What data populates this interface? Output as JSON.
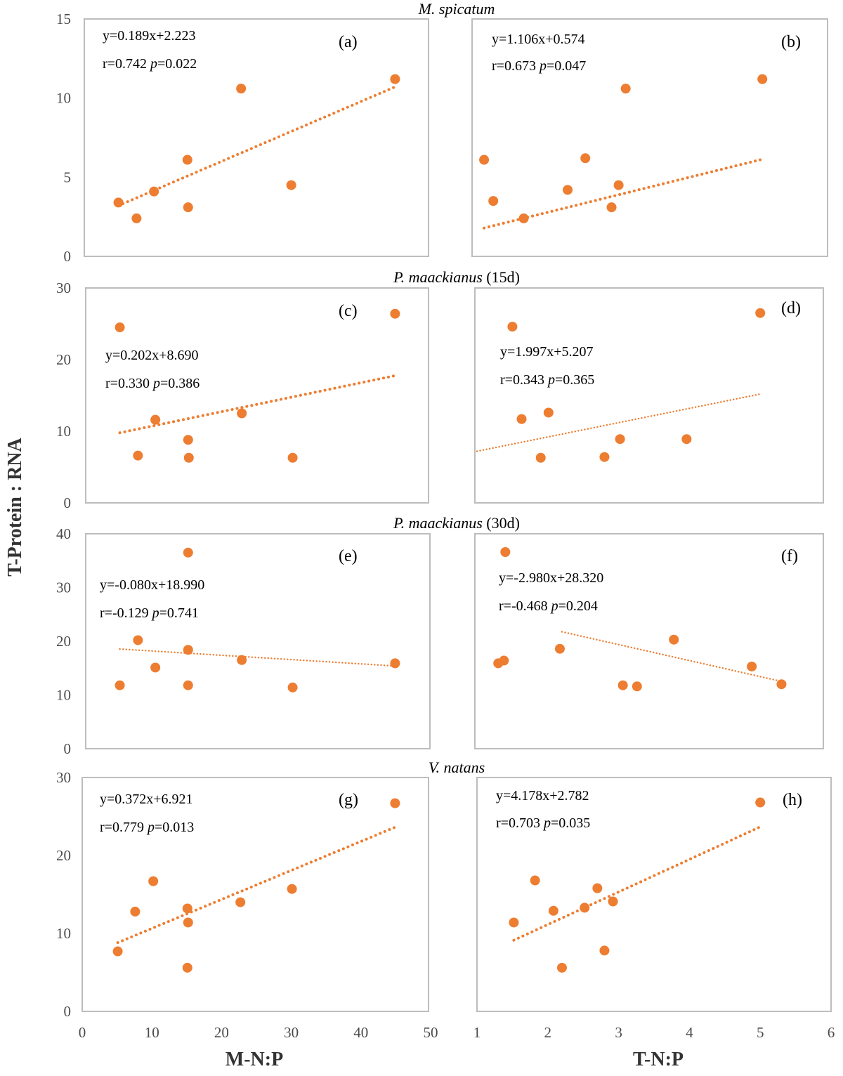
{
  "figure": {
    "ylabel": "T-Protein : RNA",
    "xlabel_left": "M-N:P",
    "xlabel_right": "T-N:P",
    "point_color": "#ed7d31",
    "trend_color": "#ed7d31"
  },
  "chart_data": [
    {
      "type": "scatter",
      "id": "a",
      "label": "(a)",
      "row_title": "M. spicatum",
      "xlabel": "M-N:P",
      "ylabel": "T-Protein : RNA",
      "xlim": [
        0,
        50
      ],
      "ylim": [
        0,
        15
      ],
      "xticks": [
        0,
        10,
        20,
        30,
        40,
        50
      ],
      "yticks": [
        0,
        5,
        10,
        15
      ],
      "x": [
        5.2,
        7.8,
        10.3,
        15.1,
        15.2,
        22.8,
        30.0,
        44.9
      ],
      "y": [
        3.4,
        2.4,
        4.1,
        6.1,
        3.1,
        10.6,
        4.5,
        11.2
      ],
      "trendline": {
        "slope": 0.189,
        "intercept": 2.223,
        "x_range": [
          5.2,
          44.9
        ],
        "style": "dotted-bold"
      },
      "equation": "y=0.189x+2.223",
      "r": "0.742",
      "p": "0.022"
    },
    {
      "type": "scatter",
      "id": "b",
      "label": "(b)",
      "row_title": "M. spicatum",
      "xlabel": "T-N:P",
      "ylabel": "T-Protein : RNA",
      "xlim": [
        1,
        6
      ],
      "ylim": [
        0,
        15
      ],
      "xticks": [
        1,
        2,
        3,
        4,
        5,
        6
      ],
      "yticks": [
        0,
        5,
        10,
        15
      ],
      "x": [
        1.1,
        1.23,
        1.66,
        2.28,
        2.53,
        2.9,
        3.0,
        3.1,
        5.03
      ],
      "y": [
        6.1,
        3.5,
        2.4,
        4.2,
        6.2,
        3.1,
        4.5,
        10.6,
        11.2
      ],
      "trendline": {
        "slope": 1.106,
        "intercept": 0.574,
        "x_range": [
          1.1,
          5.03
        ],
        "style": "dotted-bold"
      },
      "equation": "y=1.106x+0.574",
      "r": "0.673",
      "p": "0.047"
    },
    {
      "type": "scatter",
      "id": "c",
      "label": "(c)",
      "row_title": "P. maackianus (15d)",
      "xlabel": "M-N:P",
      "ylabel": "T-Protein : RNA",
      "xlim": [
        0,
        50
      ],
      "ylim": [
        0,
        30
      ],
      "xticks": [
        0,
        10,
        20,
        30,
        40,
        50
      ],
      "yticks": [
        0,
        10,
        20,
        30
      ],
      "x": [
        5.4,
        8.0,
        10.5,
        15.2,
        15.3,
        22.9,
        30.2,
        44.9
      ],
      "y": [
        24.5,
        6.6,
        11.6,
        8.8,
        6.3,
        12.5,
        6.3,
        26.4
      ],
      "trendline": {
        "slope": 0.202,
        "intercept": 8.69,
        "x_range": [
          5.4,
          44.9
        ],
        "style": "dotted-bold"
      },
      "equation": "y=0.202x+8.690",
      "r": "0.330",
      "p": "0.386"
    },
    {
      "type": "scatter",
      "id": "d",
      "label": "(d)",
      "row_title": "P. maackianus (15d)",
      "xlabel": "T-N:P",
      "ylabel": "T-Protein : RNA",
      "xlim": [
        1,
        6
      ],
      "ylim": [
        0,
        30
      ],
      "xticks": [
        1,
        2,
        3,
        4,
        5,
        6
      ],
      "yticks": [
        0,
        10,
        20,
        30
      ],
      "x": [
        1.5,
        1.63,
        1.9,
        2.01,
        2.8,
        3.02,
        3.96,
        5.0
      ],
      "y": [
        24.6,
        11.7,
        6.3,
        12.6,
        6.4,
        8.9,
        8.9,
        26.5
      ],
      "trendline": {
        "slope": 1.997,
        "intercept": 5.207,
        "x_range": [
          1.0,
          5.0
        ],
        "style": "dotted-fine"
      },
      "equation": "y=1.997x+5.207",
      "r": "0.343",
      "p": "0.365"
    },
    {
      "type": "scatter",
      "id": "e",
      "label": "(e)",
      "row_title": "P. maackianus (30d)",
      "xlabel": "M-N:P",
      "ylabel": "T-Protein : RNA",
      "xlim": [
        0,
        50
      ],
      "ylim": [
        0,
        40
      ],
      "xticks": [
        0,
        10,
        20,
        30,
        40,
        50
      ],
      "yticks": [
        0,
        10,
        20,
        30,
        40
      ],
      "x": [
        5.4,
        8.0,
        10.5,
        15.2,
        15.2,
        15.2,
        22.9,
        30.2,
        44.9
      ],
      "y": [
        11.8,
        20.2,
        15.1,
        36.5,
        18.4,
        11.8,
        16.5,
        11.4,
        15.9
      ],
      "trendline": {
        "slope": -0.08,
        "intercept": 18.99,
        "x_range": [
          5.4,
          44.9
        ],
        "style": "dotted-fine"
      },
      "equation": "y=-0.080x+18.990",
      "r": "-0.129",
      "p": "0.741"
    },
    {
      "type": "scatter",
      "id": "f",
      "label": "(f)",
      "row_title": "P. maackianus (30d)",
      "xlabel": "T-N:P",
      "ylabel": "T-Protein : RNA",
      "xlim": [
        1,
        6
      ],
      "ylim": [
        0,
        40
      ],
      "xticks": [
        1,
        2,
        3,
        4,
        5,
        6
      ],
      "yticks": [
        0,
        10,
        20,
        30,
        40
      ],
      "x": [
        1.3,
        1.4,
        1.38,
        2.17,
        3.06,
        3.26,
        3.78,
        4.88,
        5.3
      ],
      "y": [
        15.9,
        36.6,
        16.4,
        18.6,
        11.8,
        11.6,
        20.3,
        15.3,
        12.0
      ],
      "trendline": {
        "slope": -2.98,
        "intercept": 28.32,
        "x_range": [
          2.2,
          5.3
        ],
        "style": "dotted-fine"
      },
      "equation": "y=-2.980x+28.320",
      "r": "-0.468",
      "p": "0.204"
    },
    {
      "type": "scatter",
      "id": "g",
      "label": "(g)",
      "row_title": "V. natans",
      "xlabel": "M-N:P",
      "ylabel": "T-Protein : RNA",
      "xlim": [
        0,
        50
      ],
      "ylim": [
        0,
        30
      ],
      "xticks": [
        0,
        10,
        20,
        30,
        40,
        50
      ],
      "yticks": [
        0,
        10,
        20,
        30
      ],
      "x": [
        5.1,
        7.6,
        10.2,
        15.1,
        15.2,
        15.1,
        22.7,
        30.1,
        44.9
      ],
      "y": [
        7.7,
        12.8,
        16.7,
        13.2,
        11.4,
        5.6,
        14.0,
        15.7,
        26.7
      ],
      "trendline": {
        "slope": 0.372,
        "intercept": 6.921,
        "x_range": [
          5.1,
          44.9
        ],
        "style": "dotted-bold"
      },
      "equation": "y=0.372x+6.921",
      "r": "0.779",
      "p": "0.013"
    },
    {
      "type": "scatter",
      "id": "h",
      "label": "(h)",
      "row_title": "V. natans",
      "xlabel": "T-N:P",
      "ylabel": "T-Protein : RNA",
      "xlim": [
        1,
        6
      ],
      "ylim": [
        0,
        30
      ],
      "xticks": [
        1,
        2,
        3,
        4,
        5,
        6
      ],
      "yticks": [
        0,
        10,
        20,
        30
      ],
      "x": [
        1.52,
        1.82,
        2.08,
        2.2,
        2.52,
        2.7,
        2.8,
        2.92,
        5.0
      ],
      "y": [
        11.4,
        16.8,
        12.9,
        5.6,
        13.3,
        15.8,
        7.8,
        14.1,
        26.8
      ],
      "trendline": {
        "slope": 4.178,
        "intercept": 2.782,
        "x_range": [
          1.52,
          5.0
        ],
        "style": "dotted-bold"
      },
      "equation": "y=4.178x+2.782",
      "r": "0.703",
      "p": "0.035"
    }
  ]
}
